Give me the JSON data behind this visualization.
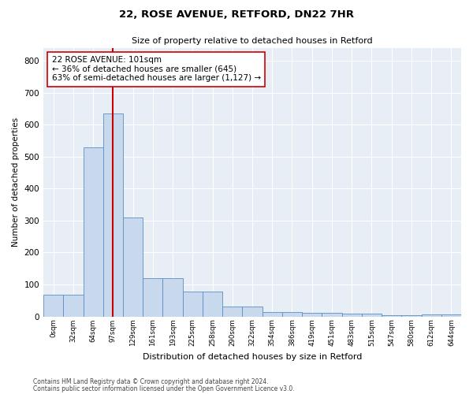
{
  "title_line1": "22, ROSE AVENUE, RETFORD, DN22 7HR",
  "title_line2": "Size of property relative to detached houses in Retford",
  "xlabel": "Distribution of detached houses by size in Retford",
  "ylabel": "Number of detached properties",
  "bar_labels": [
    "0sqm",
    "32sqm",
    "64sqm",
    "97sqm",
    "129sqm",
    "161sqm",
    "193sqm",
    "225sqm",
    "258sqm",
    "290sqm",
    "322sqm",
    "354sqm",
    "386sqm",
    "419sqm",
    "451sqm",
    "483sqm",
    "515sqm",
    "547sqm",
    "580sqm",
    "612sqm",
    "644sqm"
  ],
  "bar_values": [
    68,
    68,
    530,
    635,
    310,
    120,
    120,
    78,
    78,
    30,
    30,
    14,
    14,
    10,
    10,
    8,
    8,
    3,
    3,
    7,
    7
  ],
  "property_line_x": 3.0,
  "annotation_text": "22 ROSE AVENUE: 101sqm\n← 36% of detached houses are smaller (645)\n63% of semi-detached houses are larger (1,127) →",
  "bar_color": "#c9d9ed",
  "bar_edge_color": "#5b8ec4",
  "property_line_color": "#cc0000",
  "annotation_box_facecolor": "#ffffff",
  "annotation_box_edgecolor": "#cc0000",
  "background_color": "#e8eef5",
  "ylim": [
    0,
    840
  ],
  "yticks": [
    0,
    100,
    200,
    300,
    400,
    500,
    600,
    700,
    800
  ],
  "footer_line1": "Contains HM Land Registry data © Crown copyright and database right 2024.",
  "footer_line2": "Contains public sector information licensed under the Open Government Licence v3.0."
}
